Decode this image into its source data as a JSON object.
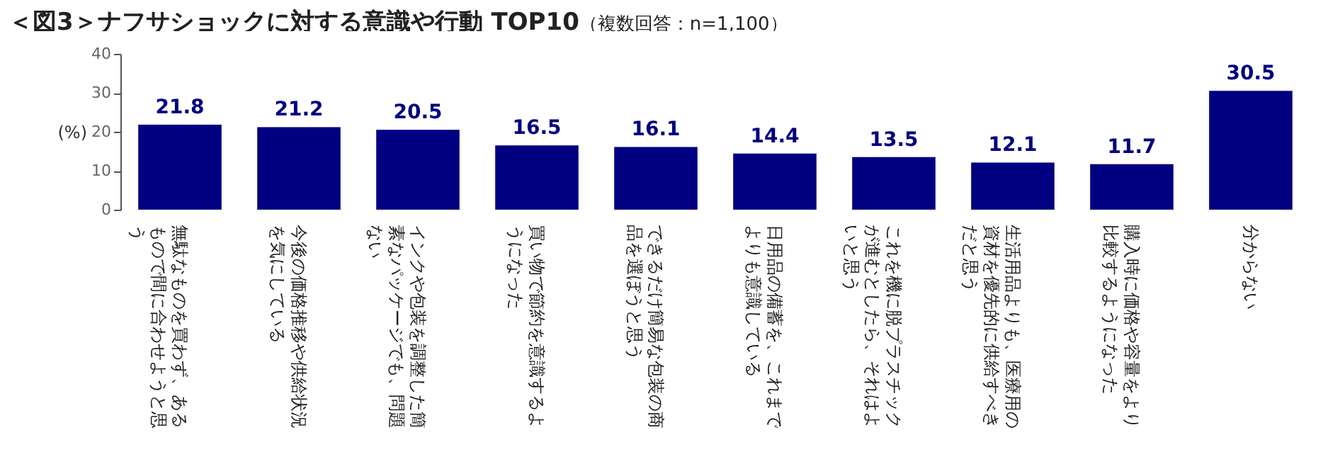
{
  "chart_data": {
    "type": "bar",
    "title": "＜図3＞ナフサショックに対する意識や行動 TOP10",
    "subtitle": "（複数回答：n=1,100）",
    "ylabel": "(%)",
    "categories": [
      "無駄なものを買わず、あるもので間に合わせようと思う",
      "今後の価格推移や供給状況を気にしている",
      "インクや包装を調整した簡素なパッケージでも、問題ない",
      "買い物で節約を意識するようになった",
      "できるだけ簡易な包装の商品を選ぼうと思う",
      "日用品の備蓄を、これまでよりも意識している",
      "これを機に脱プラスチックが進むとしたら、それはよいと思う",
      "生活用品よりも、医療用の資材を優先的に供給すべきだと思う",
      "購入時に価格や容量をより比較するようになった",
      "分からない"
    ],
    "values": [
      21.8,
      21.2,
      20.5,
      16.5,
      16.1,
      14.4,
      13.5,
      12.1,
      11.7,
      30.5
    ],
    "color": "#000080",
    "ylim": [
      0,
      40
    ],
    "yticks": [
      0,
      10,
      20,
      30,
      40
    ],
    "data_labels": true,
    "grid": false
  }
}
